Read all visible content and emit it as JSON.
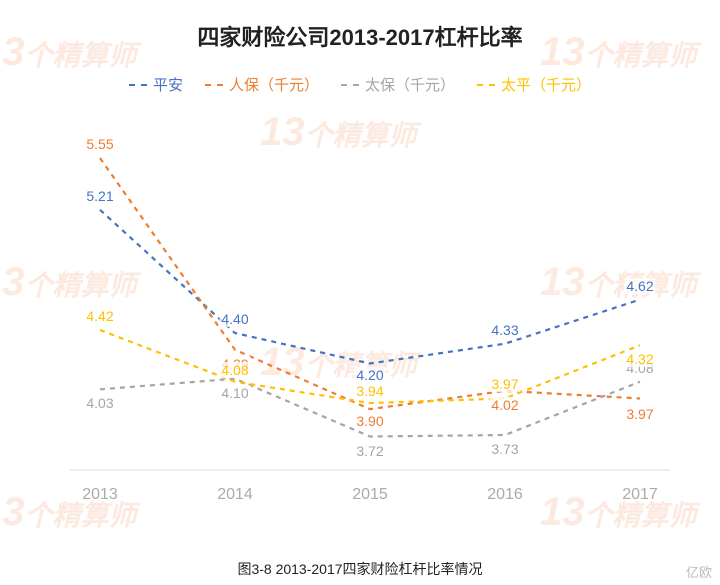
{
  "title": "四家财险公司2013-2017杠杆比率",
  "caption": "图3-8 2013-2017四家财险杠杆比率情况",
  "bottom_right": "亿欧",
  "watermark_text": "个精算师",
  "watermark_num": "13",
  "legend": [
    {
      "label": "平安",
      "color": "#4472c4"
    },
    {
      "label": "人保（千元）",
      "color": "#ed7d31"
    },
    {
      "label": "太保（千元）",
      "color": "#a5a5a5"
    },
    {
      "label": "太平（千元）",
      "color": "#ffc000"
    }
  ],
  "chart": {
    "type": "line",
    "line_style": "dashed",
    "line_width": 2.2,
    "categories": [
      "2013",
      "2014",
      "2015",
      "2016",
      "2017"
    ],
    "ylim": [
      3.5,
      5.8
    ],
    "background_color": "#ffffff",
    "baseline_color": "#dddddd",
    "xaxis_label_color": "#aaaaaa",
    "xaxis_fontsize": 16,
    "data_label_fontsize": 14,
    "series": [
      {
        "name": "平安",
        "color": "#4472c4",
        "values": [
          5.21,
          4.4,
          4.2,
          4.33,
          4.62
        ],
        "label_dy": [
          -14,
          -14,
          12,
          -14,
          -14
        ]
      },
      {
        "name": "人保（千元）",
        "color": "#ed7d31",
        "values": [
          5.55,
          4.29,
          3.9,
          4.02,
          3.97
        ],
        "label_dy": [
          -14,
          14,
          12,
          14,
          16
        ]
      },
      {
        "name": "太保（千元）",
        "color": "#a5a5a5",
        "values": [
          4.03,
          4.1,
          3.72,
          3.73,
          4.08
        ],
        "label_dy": [
          14,
          14,
          14,
          14,
          -14
        ]
      },
      {
        "name": "太平（千元）",
        "color": "#ffc000",
        "values": [
          4.42,
          4.08,
          3.94,
          3.97,
          4.32
        ],
        "label_dy": [
          -14,
          -12,
          -12,
          -14,
          14
        ]
      }
    ]
  }
}
